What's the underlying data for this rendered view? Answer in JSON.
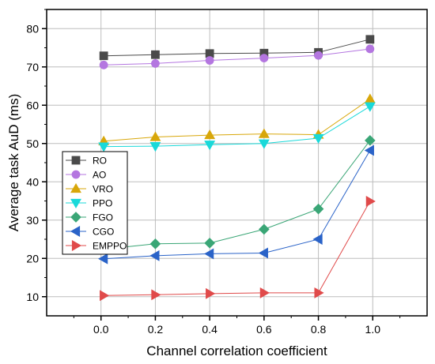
{
  "chart_data": {
    "type": "line",
    "title": "",
    "xlabel": "Channel correlation coefficient",
    "ylabel": "Average task AuD (ms)",
    "xlim": [
      -0.2,
      1.2
    ],
    "ylim": [
      5,
      85
    ],
    "xticks": [
      "0.0",
      "0.2",
      "0.4",
      "0.6",
      "0.8",
      "1.0"
    ],
    "xtick_values": [
      0.0,
      0.2,
      0.4,
      0.6,
      0.8,
      1.0
    ],
    "yticks": [
      "10",
      "20",
      "30",
      "40",
      "50",
      "60",
      "70",
      "80"
    ],
    "ytick_values": [
      10,
      20,
      30,
      40,
      50,
      60,
      70,
      80
    ],
    "grid": true,
    "legend_position": "middle-left",
    "x": [
      0.01,
      0.2,
      0.4,
      0.6,
      0.8,
      0.99
    ],
    "series": [
      {
        "name": "RO",
        "marker": "square",
        "color": "#4a4a4a",
        "values": [
          72.9,
          73.2,
          73.5,
          73.6,
          73.8,
          77.2
        ]
      },
      {
        "name": "AO",
        "marker": "circle",
        "color": "#b476e0",
        "values": [
          70.5,
          70.9,
          71.7,
          72.3,
          73.0,
          74.7
        ]
      },
      {
        "name": "VRO",
        "marker": "triangle-up",
        "color": "#d8a70a",
        "values": [
          50.6,
          51.7,
          52.2,
          52.5,
          52.3,
          61.6
        ]
      },
      {
        "name": "PPO",
        "marker": "triangle-down",
        "color": "#19d9d9",
        "values": [
          49.2,
          49.3,
          49.7,
          50.0,
          51.4,
          59.7
        ]
      },
      {
        "name": "FGO",
        "marker": "diamond",
        "color": "#3aa676",
        "values": [
          22.4,
          23.8,
          24.0,
          27.6,
          32.9,
          50.8
        ]
      },
      {
        "name": "CGO",
        "marker": "triangle-left",
        "color": "#2a63c8",
        "values": [
          19.9,
          20.7,
          21.2,
          21.4,
          25.0,
          48.2
        ]
      },
      {
        "name": "EMPPO",
        "marker": "triangle-right",
        "color": "#e04a4a",
        "values": [
          10.3,
          10.5,
          10.8,
          11.0,
          11.0,
          34.9
        ]
      }
    ]
  }
}
